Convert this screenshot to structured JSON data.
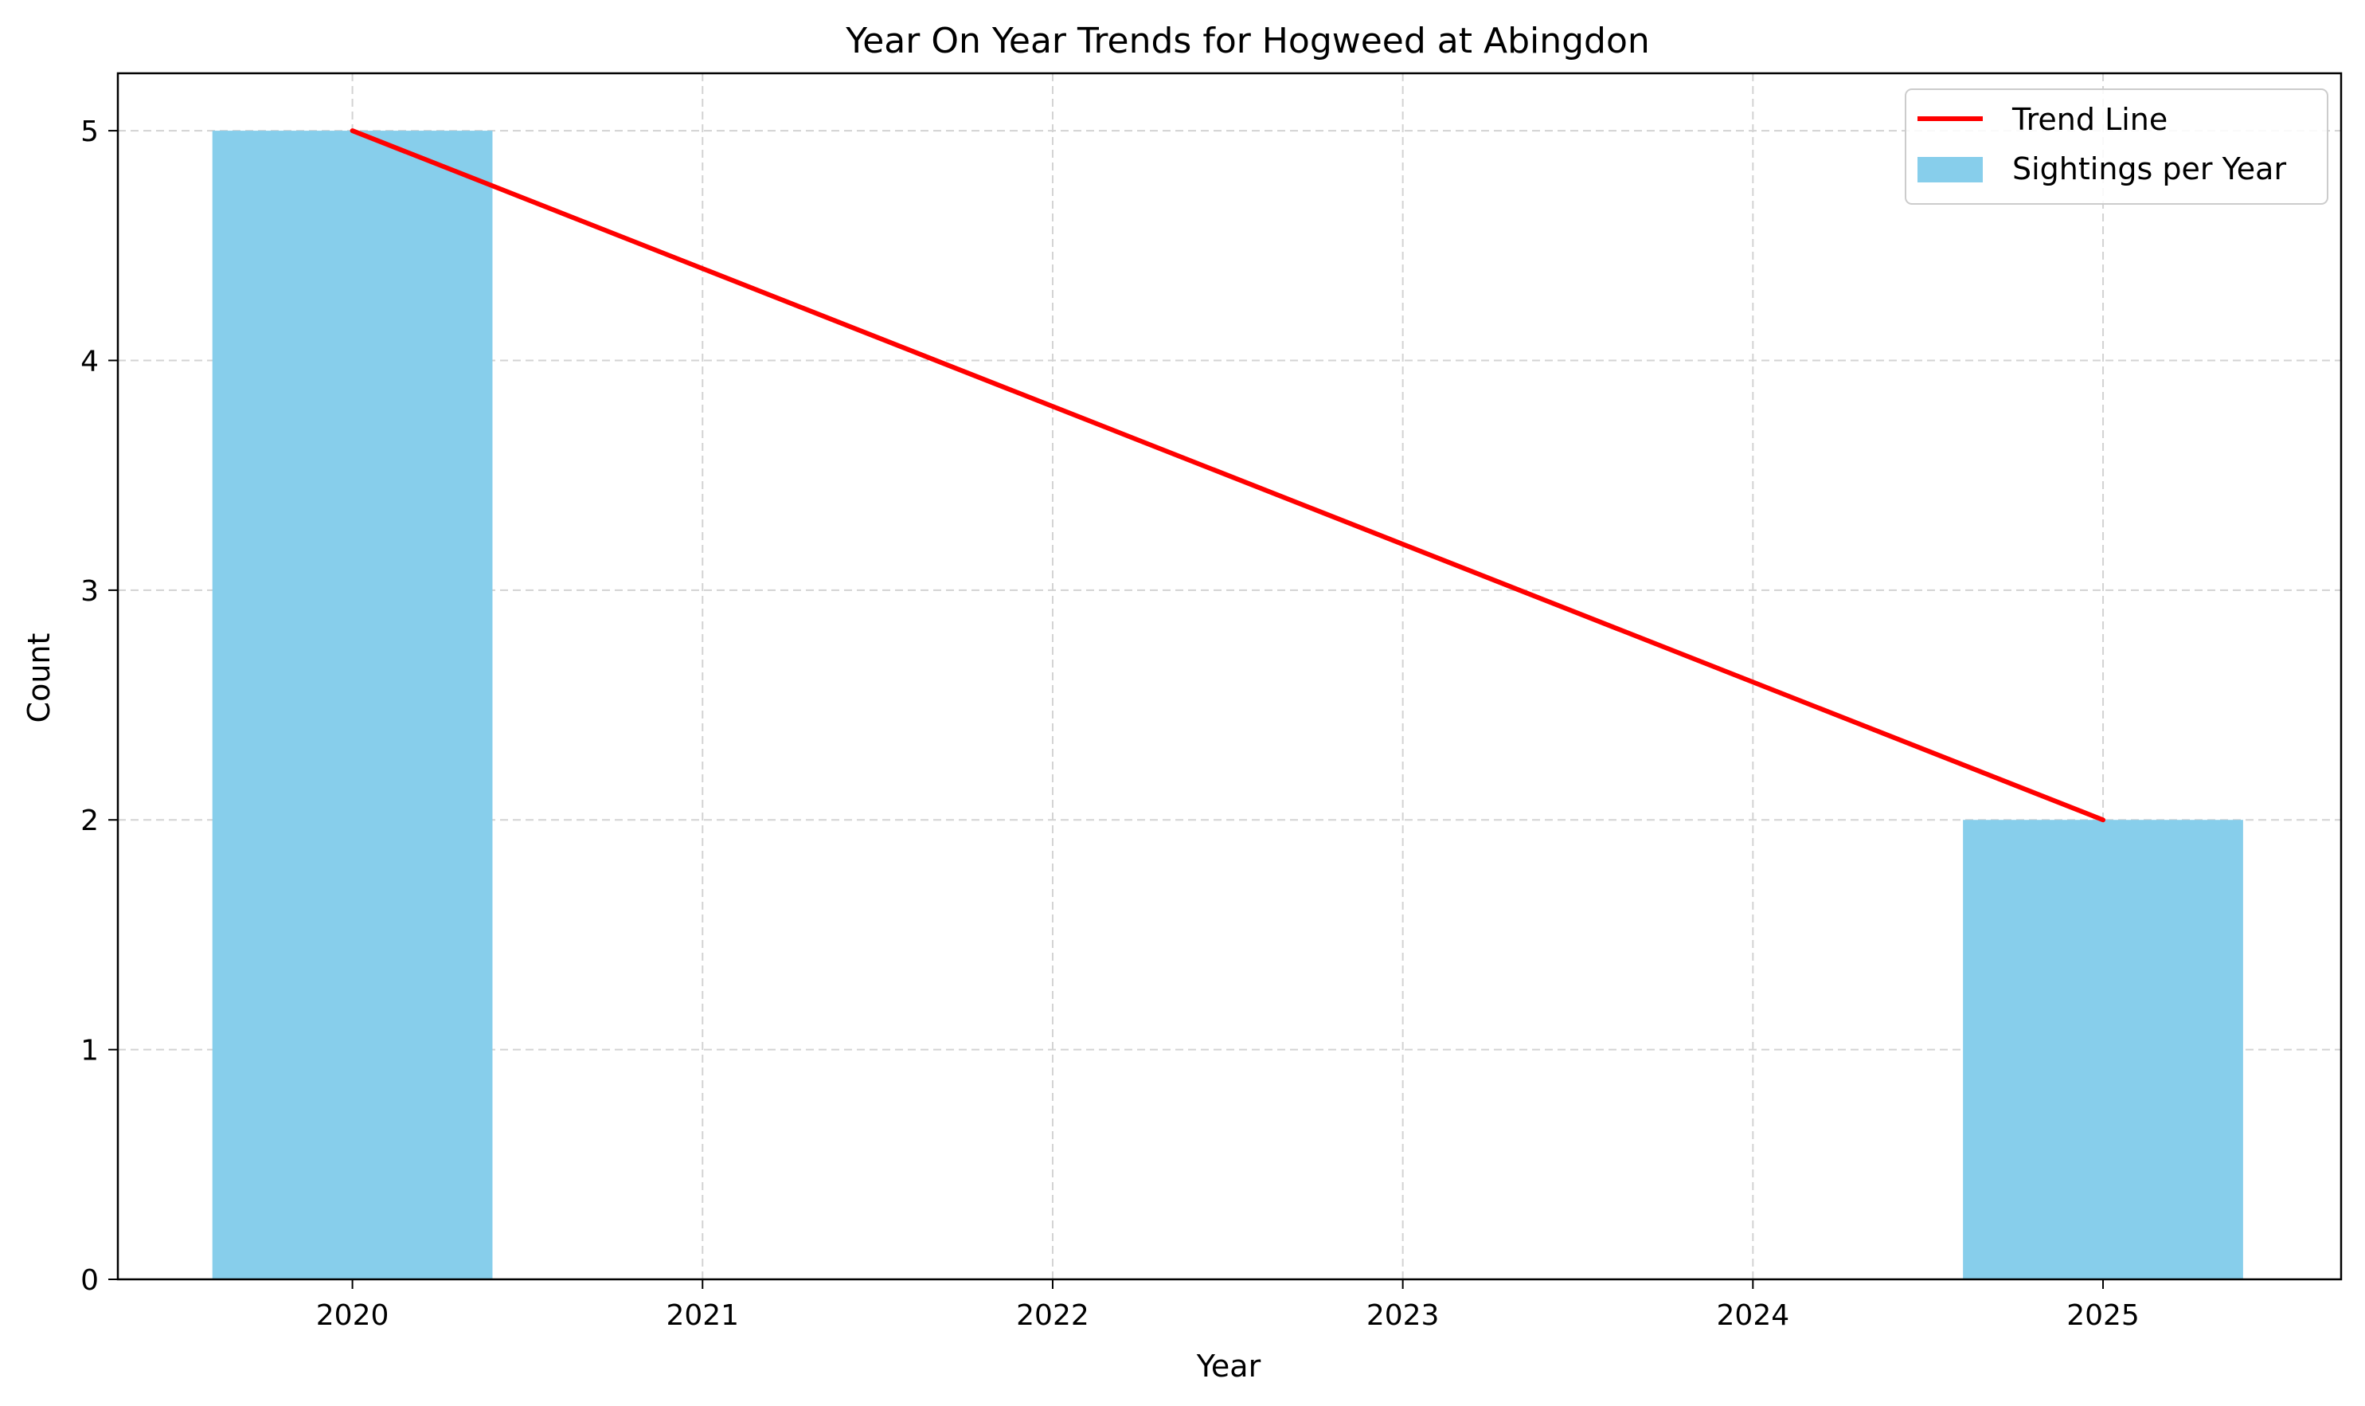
{
  "chart_data": {
    "type": "bar",
    "title": "Year On Year Trends for Hogweed at Abingdon",
    "xlabel": "Year",
    "ylabel": "Count",
    "x_ticks": [
      "2020",
      "2021",
      "2022",
      "2023",
      "2024",
      "2025"
    ],
    "xlim": [
      2019.33,
      2025.68
    ],
    "ylim": [
      0,
      5.25
    ],
    "y_ticks": [
      0,
      1,
      2,
      3,
      4,
      5
    ],
    "grid": true,
    "legend_position": "top-right",
    "bars": {
      "name": "Sightings per Year",
      "color": "#87ceeb",
      "bar_width": 0.8,
      "points": [
        {
          "x": 2020,
          "y": 5
        },
        {
          "x": 2025,
          "y": 2
        }
      ]
    },
    "trend_line": {
      "name": "Trend Line",
      "color": "#ff0000",
      "points": [
        {
          "x": 2020,
          "y": 5
        },
        {
          "x": 2025,
          "y": 2
        }
      ]
    }
  }
}
